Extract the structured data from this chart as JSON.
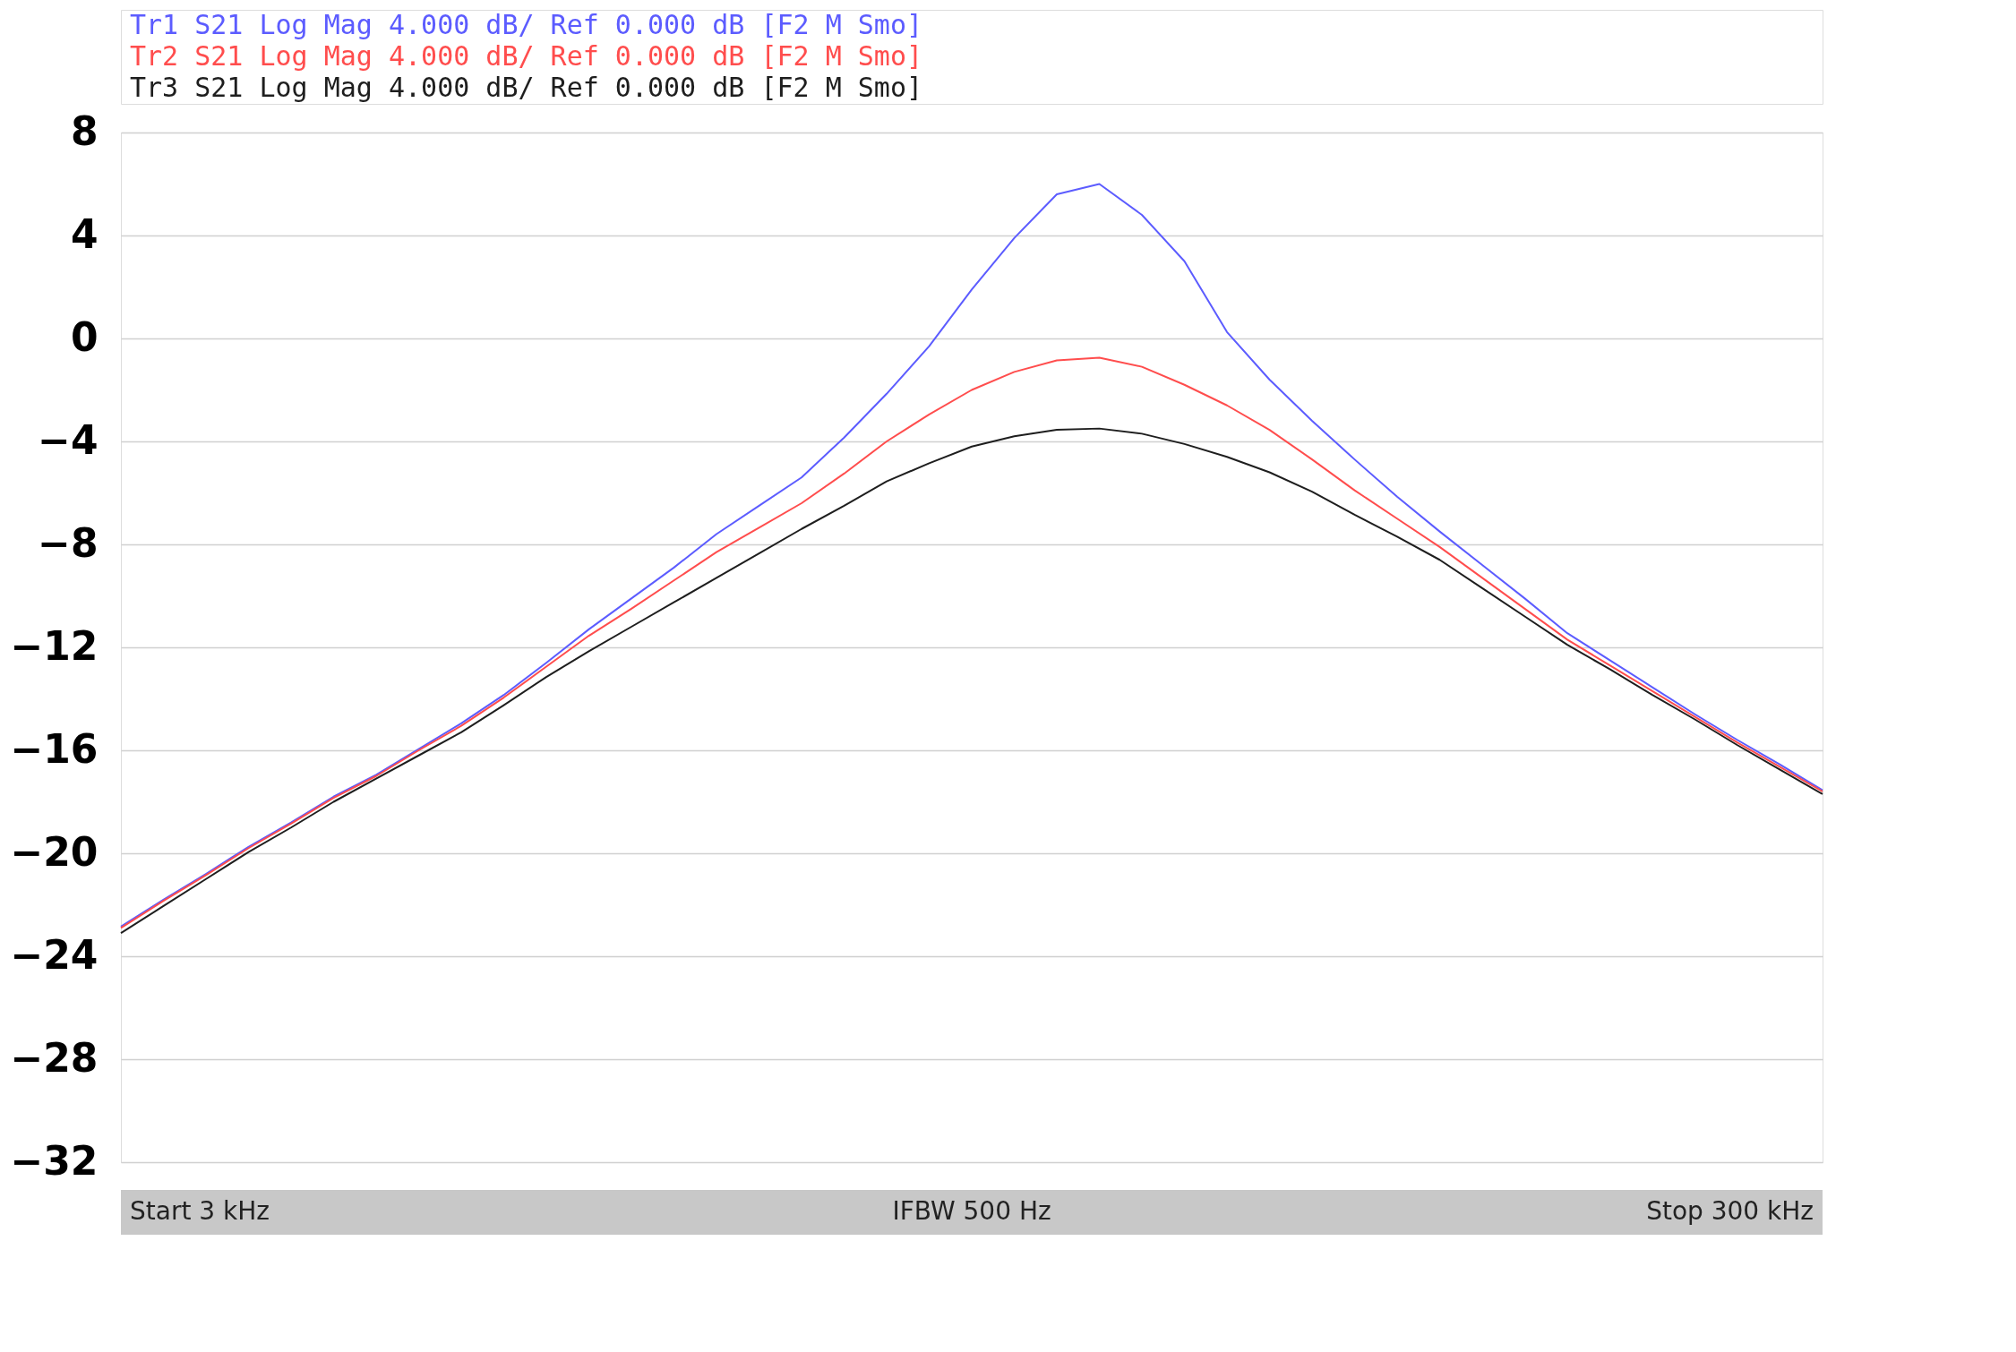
{
  "chart_data": {
    "type": "line",
    "categories": [
      null,
      null,
      null,
      null,
      null,
      null,
      null,
      null,
      null,
      null,
      null,
      null,
      null,
      null,
      null,
      null,
      null,
      null,
      null,
      null,
      null,
      null,
      null,
      null,
      null,
      null,
      null,
      null,
      null,
      null,
      null,
      null,
      null,
      null,
      null,
      null,
      null,
      null,
      null,
      null,
      null
    ],
    "series": [
      {
        "name": "Tr1 S21 Log Mag 4.000 dB/ Ref 0.000 dB [F2 M Smo]",
        "color": "#5c5cff",
        "values": [
          -22.85,
          -21.8,
          -20.8,
          -19.75,
          -18.8,
          -17.8,
          -16.95,
          -15.95,
          -14.95,
          -13.85,
          -12.6,
          -11.3,
          -10.1,
          -8.9,
          -7.6,
          -6.5,
          -5.4,
          -3.85,
          -2.15,
          -0.3,
          1.9,
          3.9,
          5.6,
          6.0,
          4.8,
          3.0,
          0.25,
          -1.6,
          -3.2,
          -4.7,
          -6.15,
          -7.5,
          -8.8,
          -10.1,
          -11.45,
          -12.5,
          -13.55,
          -14.6,
          -15.6,
          -16.55,
          -17.55
        ]
      },
      {
        "name": "Tr2 S21 Log Mag 4.000 dB/ Ref 0.000 dB [F2 M Smo]",
        "color": "#ff4d4d",
        "values": [
          -22.9,
          -21.85,
          -20.85,
          -19.8,
          -18.85,
          -17.85,
          -17.0,
          -16.0,
          -15.05,
          -13.95,
          -12.75,
          -11.55,
          -10.5,
          -9.4,
          -8.3,
          -7.35,
          -6.4,
          -5.25,
          -4.0,
          -2.95,
          -2.0,
          -1.3,
          -0.85,
          -0.75,
          -1.1,
          -1.8,
          -2.6,
          -3.55,
          -4.7,
          -5.9,
          -7.0,
          -8.1,
          -9.3,
          -10.5,
          -11.7,
          -12.7,
          -13.7,
          -14.7,
          -15.7,
          -16.65,
          -17.6
        ]
      },
      {
        "name": "Tr3 S21 Log Mag 4.000 dB/ Ref 0.000 dB [F2 M Smo]",
        "color": "#1e1e1e",
        "values": [
          -23.1,
          -22.05,
          -21.0,
          -19.95,
          -19.0,
          -18.0,
          -17.1,
          -16.2,
          -15.3,
          -14.25,
          -13.15,
          -12.15,
          -11.2,
          -10.25,
          -9.3,
          -8.35,
          -7.4,
          -6.5,
          -5.55,
          -4.85,
          -4.2,
          -3.8,
          -3.55,
          -3.5,
          -3.7,
          -4.1,
          -4.6,
          -5.2,
          -5.95,
          -6.85,
          -7.7,
          -8.6,
          -9.7,
          -10.8,
          -11.9,
          -12.85,
          -13.85,
          -14.8,
          -15.8,
          -16.75,
          -17.7
        ]
      }
    ],
    "ylim": [
      -32,
      8
    ],
    "yticks": [
      -32,
      -28,
      -24,
      -20,
      -16,
      -12,
      -8,
      -4,
      0,
      4,
      8
    ],
    "grid": "y",
    "tick_labels": "y",
    "marker": "none",
    "line_style": "solid",
    "annotations": [
      "Start 3 kHz",
      "IFBW 500 Hz",
      "Stop 300 kHz"
    ]
  }
}
